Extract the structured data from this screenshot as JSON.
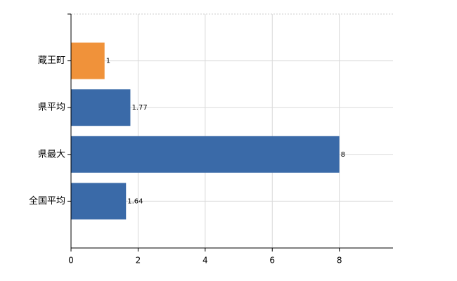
{
  "chart_data": {
    "type": "hbar",
    "categories": [
      "蔵王町",
      "県平均",
      "県最大",
      "全国平均"
    ],
    "values": [
      1,
      1.77,
      8,
      1.64
    ],
    "colors": [
      "#f0923a",
      "#3a6aa8",
      "#3a6aa8",
      "#3a6aa8"
    ],
    "xlim": [
      0,
      9.6
    ],
    "xticks": [
      0,
      2,
      4,
      6,
      8
    ],
    "grid": true
  }
}
